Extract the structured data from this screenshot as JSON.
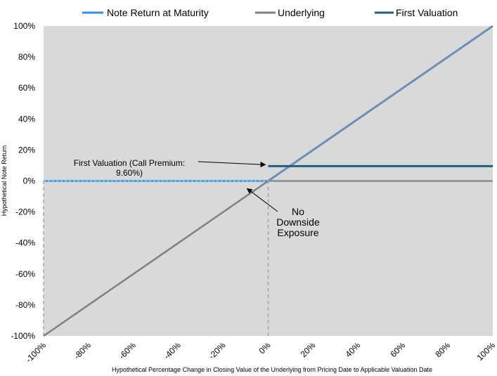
{
  "chart_data": {
    "type": "line",
    "title": "",
    "xlabel": "Hypothetical Percentage Change in Closing Value of the Underlying from Pricing Date to Applicable Valuation Date",
    "ylabel": "Hypothetical Note Return",
    "xlim": [
      -100,
      100
    ],
    "ylim": [
      -100,
      100
    ],
    "x_ticks": [
      "-100%",
      "-80%",
      "-60%",
      "-40%",
      "-20%",
      "0%",
      "20%",
      "40%",
      "60%",
      "80%",
      "100%"
    ],
    "y_ticks": [
      "100%",
      "80%",
      "60%",
      "40%",
      "20%",
      "0%",
      "-20%",
      "-40%",
      "-60%",
      "-80%",
      "-100%"
    ],
    "x_tick_values": [
      -100,
      -80,
      -60,
      -40,
      -20,
      0,
      20,
      40,
      60,
      80,
      100
    ],
    "y_tick_values": [
      100,
      80,
      60,
      40,
      20,
      0,
      -20,
      -40,
      -60,
      -80,
      -100
    ],
    "grid": false,
    "legend_position": "top",
    "plot_background": "#d9d9d9",
    "series": [
      {
        "name": "Note Return at Maturity",
        "color": "#2e8ff0",
        "x": [
          -100,
          0
        ],
        "y": [
          0,
          0
        ],
        "style": "solid"
      },
      {
        "name": "Underlying",
        "color": "#808080",
        "x": [
          -100,
          100
        ],
        "y": [
          -100,
          100
        ],
        "style": "solid"
      },
      {
        "name": "First Valuation",
        "color": "#1f5f7a",
        "x": [
          0,
          100
        ],
        "y": [
          9.6,
          9.6
        ],
        "style": "solid"
      }
    ],
    "overlays": {
      "upside_line": {
        "color": "#6f8fb5",
        "x": [
          0,
          100
        ],
        "y": [
          0,
          100
        ]
      },
      "zero_line": {
        "color": "#8c8c8c",
        "x": [
          0,
          100
        ],
        "y": [
          0,
          0
        ]
      },
      "vertical_dashed": {
        "color": "#a6a6a6",
        "x": 0,
        "y_range": [
          -100,
          0
        ]
      },
      "left_dashed": {
        "color": "#a6a6a6",
        "x": -100,
        "y_range": [
          -100,
          0
        ]
      }
    },
    "annotations": [
      {
        "text_lines": [
          "First Valuation (Call Premium:",
          "9.60%)"
        ],
        "arrow_to": [
          0,
          10.5
        ]
      },
      {
        "text_lines": [
          "No",
          "Downside",
          "Exposure"
        ],
        "arrow_to": [
          -10,
          -4
        ]
      }
    ]
  }
}
